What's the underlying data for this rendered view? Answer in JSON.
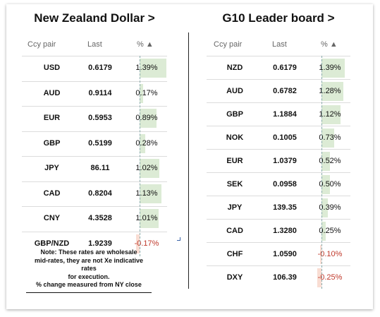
{
  "left": {
    "title": "New Zealand Dollar >",
    "headers": {
      "pair": "Ccy pair",
      "last": "Last",
      "pct": "% ▲"
    },
    "rows": [
      {
        "pair": "USD",
        "last": "0.6179",
        "pct": "1.39%",
        "value": 1.39
      },
      {
        "pair": "AUD",
        "last": "0.9114",
        "pct": "0.17%",
        "value": 0.17
      },
      {
        "pair": "EUR",
        "last": "0.5953",
        "pct": "0.89%",
        "value": 0.89
      },
      {
        "pair": "GBP",
        "last": "0.5199",
        "pct": "0.28%",
        "value": 0.28
      },
      {
        "pair": "JPY",
        "last": "86.11",
        "pct": "1.02%",
        "value": 1.02
      },
      {
        "pair": "CAD",
        "last": "0.8204",
        "pct": "1.13%",
        "value": 1.13
      },
      {
        "pair": "CNY",
        "last": "4.3528",
        "pct": "1.01%",
        "value": 1.01
      },
      {
        "pair": "GBP/NZD",
        "last": "1.9239",
        "pct": "-0.17%",
        "value": -0.17
      }
    ],
    "note": {
      "line1": "Note: These rates are wholesale",
      "line2": "mid-rates, they are not Xe indicative rates",
      "line3": "for execution.",
      "line4": "% change measured from NY close"
    }
  },
  "right": {
    "title": "G10 Leader board >",
    "headers": {
      "pair": "Ccy pair",
      "last": "Last",
      "pct": "% ▲"
    },
    "rows": [
      {
        "pair": "NZD",
        "last": "0.6179",
        "pct": "1.39%",
        "value": 1.39
      },
      {
        "pair": "AUD",
        "last": "0.6782",
        "pct": "1.28%",
        "value": 1.28
      },
      {
        "pair": "GBP",
        "last": "1.1884",
        "pct": "1.12%",
        "value": 1.12
      },
      {
        "pair": "NOK",
        "last": "0.1005",
        "pct": "0.73%",
        "value": 0.73
      },
      {
        "pair": "EUR",
        "last": "1.0379",
        "pct": "0.52%",
        "value": 0.52
      },
      {
        "pair": "SEK",
        "last": "0.0958",
        "pct": "0.50%",
        "value": 0.5
      },
      {
        "pair": "JPY",
        "last": "139.35",
        "pct": "0.39%",
        "value": 0.39
      },
      {
        "pair": "CAD",
        "last": "1.3280",
        "pct": "0.25%",
        "value": 0.25
      },
      {
        "pair": "CHF",
        "last": "1.0590",
        "pct": "-0.10%",
        "value": -0.1
      },
      {
        "pair": "DXY",
        "last": "106.39",
        "pct": "-0.25%",
        "value": -0.25
      }
    ]
  },
  "colors": {
    "positive_bar": "#dcebd5",
    "negative_bar": "#f9ddd3",
    "negative_text": "#c0392b"
  }
}
